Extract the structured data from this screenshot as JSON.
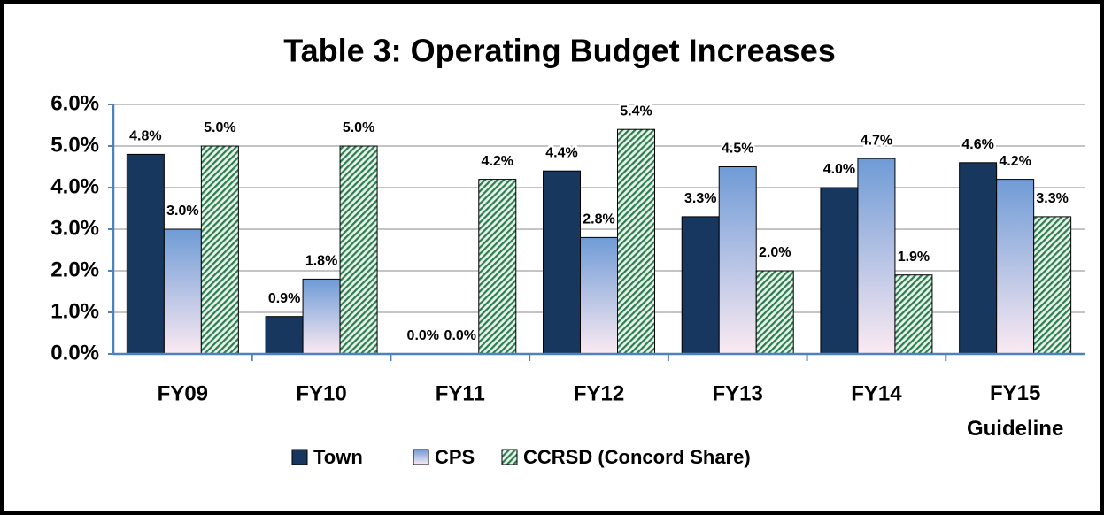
{
  "chart_data": {
    "type": "bar",
    "title": "Table 3: Operating Budget Increases",
    "categories": [
      "FY09",
      "FY10",
      "FY11",
      "FY12",
      "FY13",
      "FY14",
      "FY15\nGuideline"
    ],
    "series": [
      {
        "name": "Town",
        "color": "#17375e",
        "values": [
          4.8,
          0.9,
          0.0,
          4.4,
          3.3,
          4.0,
          4.6
        ],
        "value_labels": [
          "4.8%",
          "0.9%",
          "0.0%",
          "4.4%",
          "3.3%",
          "4.0%",
          "4.6%"
        ]
      },
      {
        "name": "CPS",
        "color": "#6f9bd6",
        "values": [
          3.0,
          1.8,
          0.0,
          2.8,
          4.5,
          4.7,
          4.2
        ],
        "value_labels": [
          "3.0%",
          "1.8%",
          "0.0%",
          "2.8%",
          "4.5%",
          "4.7%",
          "4.2%"
        ]
      },
      {
        "name": "CCRSD (Concord Share)",
        "color": "#2e7d4f",
        "values": [
          5.0,
          5.0,
          4.2,
          5.4,
          2.0,
          1.9,
          3.3
        ],
        "value_labels": [
          "5.0%",
          "5.0%",
          "4.2%",
          "5.4%",
          "2.0%",
          "1.9%",
          "3.3%"
        ]
      }
    ],
    "ylim": [
      0,
      6
    ],
    "yticks": [
      {
        "value": 0,
        "label": "0.0%"
      },
      {
        "value": 1,
        "label": "1.0%"
      },
      {
        "value": 2,
        "label": "2.0%"
      },
      {
        "value": 3,
        "label": "3.0%"
      },
      {
        "value": 4,
        "label": "4.0%"
      },
      {
        "value": 5,
        "label": "5.0%"
      },
      {
        "value": 6,
        "label": "6.0%"
      }
    ],
    "grid": true
  }
}
